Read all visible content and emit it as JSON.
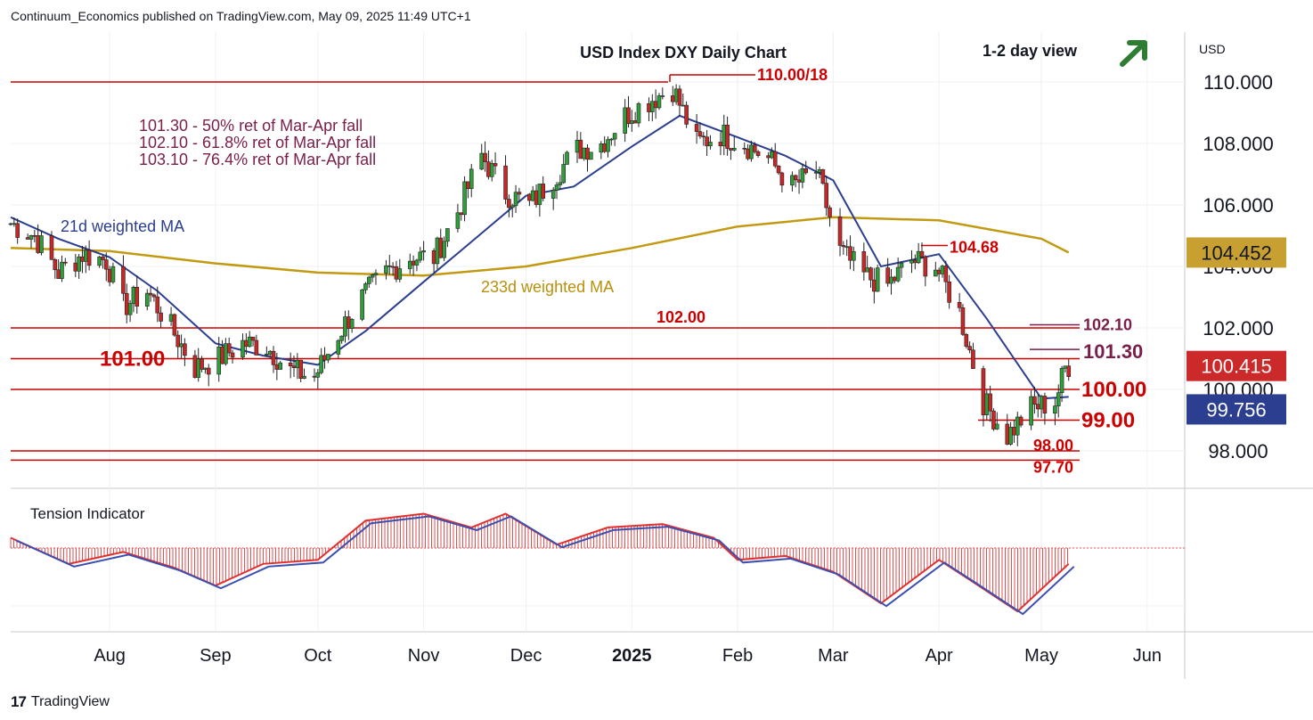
{
  "header": {
    "attribution": "Continuum_Economics published on TradingView.com, May 09, 2025 11:49 UTC+1"
  },
  "footer": {
    "logo": "17",
    "brand": "TradingView"
  },
  "colors": {
    "up": "#26a69a",
    "down": "#ef5350",
    "candle_up": "#2e9e3a",
    "candle_down": "#c62828",
    "ma21": "#2b3e8f",
    "ma233": "#c29a12",
    "level": "#cc0000",
    "fib": "#7a1e4a",
    "arrow": "#2e7d32",
    "tension_fill": "#e05050",
    "price_bg": "#c8a032",
    "last_bg": "#cc2a2a",
    "ma_bg": "#2b3e8f"
  },
  "chart_data": {
    "type": "line",
    "title": "USD Index DXY Daily Chart",
    "subtitle": "1-2 day view",
    "arrow": "up-right-arrow",
    "currency": "USD",
    "y_axis": {
      "ticks": [
        "98.000",
        "100.000",
        "102.000",
        "104.000",
        "106.000",
        "108.000",
        "110.000"
      ],
      "range": [
        97.0,
        111.5
      ]
    },
    "x_axis": {
      "ticks": [
        "Aug",
        "Sep",
        "Oct",
        "Nov",
        "Dec",
        "2025",
        "Feb",
        "Mar",
        "Apr",
        "May",
        "Jun"
      ],
      "range": [
        "2024-07-03",
        "2025-06-12"
      ]
    },
    "price_labels": [
      {
        "value": 104.452,
        "text": "104.452",
        "kind": "ma233"
      },
      {
        "value": 100.415,
        "text": "100.415",
        "kind": "last"
      },
      {
        "value": 99.756,
        "text": "99.756",
        "kind": "ma21"
      }
    ],
    "fib_notes": [
      "101.30 - 50% ret of Mar-Apr fall",
      "102.10 - 61.8% ret of Mar-Apr fall",
      "103.10 - 76.4% ret of Mar-Apr fall"
    ],
    "ma_labels": {
      "ma21": "21d weighted MA",
      "ma233": "233d weighted MA"
    },
    "levels": [
      {
        "value": 110.0,
        "label": "110.00/18",
        "style": "full"
      },
      {
        "value": 102.0,
        "label": "102.00",
        "style": "full"
      },
      {
        "value": 101.0,
        "label": "101.00",
        "style": "full"
      },
      {
        "value": 100.0,
        "label": "100.00",
        "style": "full"
      },
      {
        "value": 98.0,
        "label": "98.00",
        "style": "full"
      },
      {
        "value": 97.7,
        "label": "97.70",
        "style": "full"
      },
      {
        "value": 99.0,
        "label": "99.00",
        "style": "partial"
      },
      {
        "value": 104.68,
        "label": "104.68",
        "style": "partial"
      },
      {
        "value": 102.1,
        "label": "102.10",
        "style": "fib"
      },
      {
        "value": 101.3,
        "label": "101.30",
        "style": "fib"
      }
    ],
    "price_series": [
      [
        "2024-07-03",
        105.4
      ],
      [
        "2024-07-10",
        105.0
      ],
      [
        "2024-07-17",
        103.8
      ],
      [
        "2024-07-24",
        104.4
      ],
      [
        "2024-07-31",
        104.2
      ],
      [
        "2024-08-05",
        102.7
      ],
      [
        "2024-08-12",
        103.2
      ],
      [
        "2024-08-19",
        102.0
      ],
      [
        "2024-08-26",
        100.7
      ],
      [
        "2024-09-02",
        101.0
      ],
      [
        "2024-09-09",
        101.5
      ],
      [
        "2024-09-16",
        101.4
      ],
      [
        "2024-09-23",
        100.6
      ],
      [
        "2024-09-30",
        100.4
      ],
      [
        "2024-10-07",
        101.8
      ],
      [
        "2024-10-14",
        103.0
      ],
      [
        "2024-10-21",
        103.8
      ],
      [
        "2024-10-28",
        104.3
      ],
      [
        "2024-11-04",
        104.3
      ],
      [
        "2024-11-11",
        105.8
      ],
      [
        "2024-11-18",
        107.6
      ],
      [
        "2024-11-25",
        106.4
      ],
      [
        "2024-12-02",
        106.0
      ],
      [
        "2024-12-09",
        106.9
      ],
      [
        "2024-12-16",
        107.8
      ],
      [
        "2024-12-23",
        108.0
      ],
      [
        "2024-12-30",
        108.9
      ],
      [
        "2025-01-06",
        109.4
      ],
      [
        "2025-01-13",
        109.8
      ],
      [
        "2025-01-20",
        108.0
      ],
      [
        "2025-01-27",
        108.3
      ],
      [
        "2025-02-03",
        108.0
      ],
      [
        "2025-02-10",
        107.5
      ],
      [
        "2025-02-17",
        106.6
      ],
      [
        "2025-02-24",
        107.1
      ],
      [
        "2025-03-03",
        104.5
      ],
      [
        "2025-03-10",
        103.7
      ],
      [
        "2025-03-17",
        103.4
      ],
      [
        "2025-03-24",
        104.2
      ],
      [
        "2025-03-31",
        104.0
      ],
      [
        "2025-04-07",
        102.5
      ],
      [
        "2025-04-14",
        99.6
      ],
      [
        "2025-04-21",
        98.5
      ],
      [
        "2025-04-28",
        99.4
      ],
      [
        "2025-05-05",
        99.6
      ],
      [
        "2025-05-08",
        100.7
      ],
      [
        "2025-05-09",
        100.415
      ]
    ],
    "ma21_series": [
      [
        "2024-07-03",
        105.6
      ],
      [
        "2024-07-17",
        104.9
      ],
      [
        "2024-08-01",
        104.3
      ],
      [
        "2024-08-15",
        103.2
      ],
      [
        "2024-09-01",
        101.5
      ],
      [
        "2024-09-15",
        101.1
      ],
      [
        "2024-10-01",
        100.8
      ],
      [
        "2024-10-15",
        101.9
      ],
      [
        "2024-11-01",
        103.5
      ],
      [
        "2024-11-15",
        104.8
      ],
      [
        "2024-12-01",
        106.3
      ],
      [
        "2024-12-15",
        106.6
      ],
      [
        "2025-01-01",
        107.9
      ],
      [
        "2025-01-15",
        108.9
      ],
      [
        "2025-02-01",
        108.2
      ],
      [
        "2025-02-15",
        107.6
      ],
      [
        "2025-03-01",
        106.8
      ],
      [
        "2025-03-15",
        104.0
      ],
      [
        "2025-04-01",
        104.4
      ],
      [
        "2025-04-15",
        102.3
      ],
      [
        "2025-05-01",
        99.7
      ],
      [
        "2025-05-09",
        99.756
      ]
    ],
    "ma233_series": [
      [
        "2024-07-03",
        104.6
      ],
      [
        "2024-08-01",
        104.5
      ],
      [
        "2024-09-01",
        104.1
      ],
      [
        "2024-10-01",
        103.8
      ],
      [
        "2024-11-01",
        103.7
      ],
      [
        "2024-12-01",
        104.0
      ],
      [
        "2025-01-01",
        104.6
      ],
      [
        "2025-02-01",
        105.3
      ],
      [
        "2025-03-01",
        105.6
      ],
      [
        "2025-04-01",
        105.5
      ],
      [
        "2025-05-01",
        104.9
      ],
      [
        "2025-05-09",
        104.452
      ]
    ],
    "tension_indicator": {
      "title": "Tension Indicator",
      "series": [
        [
          "2024-07-03",
          0.3
        ],
        [
          "2024-07-20",
          -0.4
        ],
        [
          "2024-08-05",
          -0.1
        ],
        [
          "2024-08-20",
          -0.5
        ],
        [
          "2024-09-01",
          -0.95
        ],
        [
          "2024-09-15",
          -0.4
        ],
        [
          "2024-10-01",
          -0.3
        ],
        [
          "2024-10-15",
          0.8
        ],
        [
          "2024-11-01",
          1.0
        ],
        [
          "2024-11-15",
          0.6
        ],
        [
          "2024-11-25",
          1.0
        ],
        [
          "2024-12-10",
          0.1
        ],
        [
          "2024-12-25",
          0.6
        ],
        [
          "2025-01-10",
          0.7
        ],
        [
          "2025-01-25",
          0.3
        ],
        [
          "2025-02-01",
          -0.3
        ],
        [
          "2025-02-15",
          -0.2
        ],
        [
          "2025-03-01",
          -0.6
        ],
        [
          "2025-03-15",
          -1.4
        ],
        [
          "2025-04-01",
          -0.3
        ],
        [
          "2025-04-10",
          -0.8
        ],
        [
          "2025-04-24",
          -1.6
        ],
        [
          "2025-05-09",
          -0.4
        ]
      ],
      "range": [
        -1.8,
        1.3
      ]
    }
  }
}
